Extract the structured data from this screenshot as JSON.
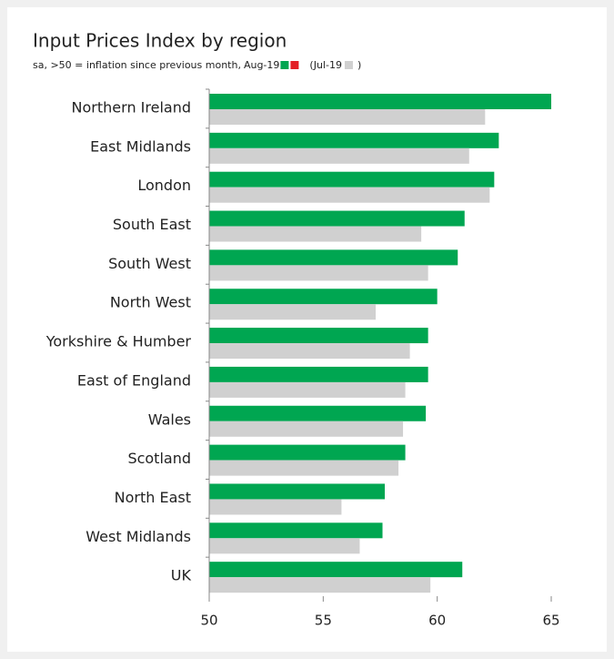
{
  "chart_data": {
    "type": "barh",
    "title": "Input Prices Index by region",
    "subtitle": "sa, >50 = inflation since previous month,",
    "legend_open": "(",
    "legend_close": ")",
    "categories": [
      "Northern Ireland",
      "East Midlands",
      "London",
      "South East",
      "South West",
      "North West",
      "Yorkshire & Humber",
      "East of England",
      "Wales",
      "Scotland",
      "North East",
      "West Midlands",
      "UK"
    ],
    "series": [
      {
        "name": "Aug-19",
        "color": "#00a651",
        "values": [
          65.0,
          62.7,
          62.5,
          61.2,
          60.9,
          60.0,
          59.6,
          59.6,
          59.5,
          58.6,
          57.7,
          57.6,
          61.1
        ]
      },
      {
        "name": "Jul-19",
        "color": "#d0d0d0",
        "values": [
          62.1,
          61.4,
          62.3,
          59.3,
          59.6,
          57.3,
          58.8,
          58.6,
          58.5,
          58.3,
          55.8,
          56.6,
          59.7
        ]
      }
    ],
    "xlim": [
      50,
      65
    ],
    "xticks": [
      50,
      55,
      60,
      65
    ]
  }
}
